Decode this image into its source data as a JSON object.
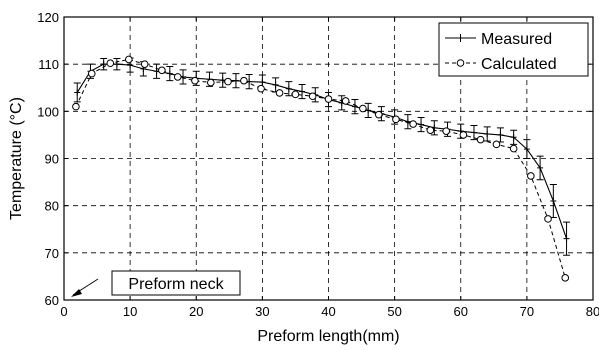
{
  "chart_data": {
    "type": "line",
    "xlabel": "Preform length(mm)",
    "ylabel": "Temperature (°C)",
    "xlim": [
      0,
      80
    ],
    "ylim": [
      60,
      120
    ],
    "xticks": [
      0,
      10,
      20,
      30,
      40,
      50,
      60,
      70,
      80
    ],
    "yticks": [
      60,
      70,
      80,
      90,
      100,
      110,
      120
    ],
    "grid": true,
    "legend_position": "top-right",
    "annotation": {
      "text": "Preform neck",
      "target": [
        0,
        60
      ]
    },
    "series": [
      {
        "name": "Measured",
        "style": "solid line with plus markers and error bars",
        "color": "#000000",
        "x": [
          2,
          4,
          6,
          8,
          10,
          12,
          14,
          16,
          18,
          20,
          22,
          24,
          26,
          28,
          30,
          32,
          34,
          36,
          38,
          40,
          42,
          44,
          46,
          48,
          50,
          52,
          54,
          56,
          58,
          60,
          62,
          64,
          66,
          68,
          70,
          72,
          74,
          76
        ],
        "y": [
          104,
          108.5,
          110,
          110,
          109.8,
          109,
          108.5,
          108,
          107.3,
          107,
          106.8,
          106.6,
          106.5,
          106.3,
          106.2,
          105.6,
          104.8,
          104.2,
          103.5,
          102.5,
          101.8,
          101,
          100.2,
          99.5,
          98.8,
          97.8,
          97.2,
          96.5,
          96.2,
          95.8,
          95.5,
          95.2,
          95,
          94.5,
          92,
          88,
          81,
          73
        ],
        "error": [
          2,
          1.5,
          1.2,
          1.2,
          1.5,
          1.5,
          1.5,
          1.5,
          1.5,
          1.5,
          1.5,
          1.5,
          1.5,
          1.5,
          1.5,
          1.5,
          1.5,
          1.5,
          1.5,
          1.5,
          1.5,
          1.5,
          1.5,
          1.5,
          1.5,
          1.5,
          1.5,
          1.5,
          1.5,
          1.5,
          1.5,
          1.5,
          1.5,
          1.5,
          2,
          2.5,
          3.5,
          3.5
        ]
      },
      {
        "name": "Calculated",
        "style": "dashed line with open circle markers",
        "color": "#000000",
        "x": [
          1.8,
          4.2,
          7,
          9.8,
          12.2,
          14.8,
          17.2,
          19.8,
          22.2,
          24.8,
          27.2,
          29.8,
          32.6,
          35,
          37.6,
          40,
          42.6,
          45.2,
          47.6,
          50.2,
          52.8,
          55.4,
          57.8,
          60.4,
          63,
          65.4,
          68,
          70.6,
          73.2,
          75.8
        ],
        "y": [
          101,
          108,
          110.2,
          111,
          110,
          108.7,
          107.3,
          106.5,
          106.1,
          106.3,
          106.5,
          104.8,
          103.9,
          103.6,
          103.2,
          102.6,
          102.2,
          100.6,
          99.3,
          98.3,
          97.3,
          96,
          95.8,
          95,
          94,
          93,
          92.1,
          86.3,
          77.2,
          64.7
        ]
      }
    ]
  }
}
